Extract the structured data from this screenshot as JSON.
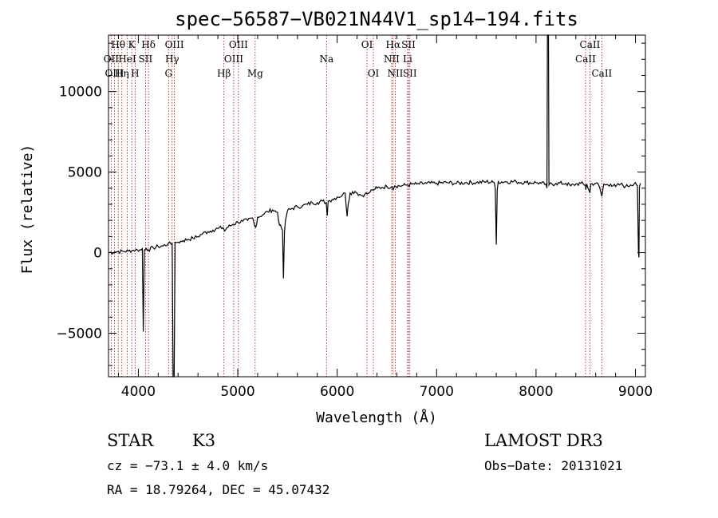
{
  "chart_data": {
    "type": "line",
    "title": "spec−56587−VB021N44V1_sp14−194.fits",
    "xlabel": "Wavelength (Å)",
    "ylabel": "Flux (relative)",
    "xlim": [
      3700,
      9100
    ],
    "ylim": [
      -7700,
      13500
    ],
    "x_ticks": [
      4000,
      5000,
      6000,
      7000,
      8000,
      9000
    ],
    "y_ticks": [
      -5000,
      0,
      5000,
      10000
    ],
    "y_tick_labels": [
      "−5000",
      "0",
      "5000",
      "10000"
    ],
    "grid": false,
    "series": [
      {
        "color": "#000000",
        "points": [
          [
            3700,
            0
          ],
          [
            3760,
            40
          ],
          [
            3800,
            60
          ],
          [
            3850,
            80
          ],
          [
            3900,
            100
          ],
          [
            3950,
            150
          ],
          [
            3990,
            170
          ],
          [
            4030,
            170
          ],
          [
            4040,
            250
          ],
          [
            4050,
            -4900
          ],
          [
            4060,
            150
          ],
          [
            4080,
            260
          ],
          [
            4100,
            180
          ],
          [
            4150,
            300
          ],
          [
            4200,
            380
          ],
          [
            4250,
            420
          ],
          [
            4300,
            560
          ],
          [
            4330,
            520
          ],
          [
            4340,
            560
          ],
          [
            4350,
            -7700
          ],
          [
            4360,
            -7700
          ],
          [
            4370,
            640
          ],
          [
            4400,
            650
          ],
          [
            4450,
            750
          ],
          [
            4500,
            820
          ],
          [
            4550,
            900
          ],
          [
            4600,
            1000
          ],
          [
            4650,
            1200
          ],
          [
            4700,
            1300
          ],
          [
            4750,
            1400
          ],
          [
            4800,
            1500
          ],
          [
            4850,
            1550
          ],
          [
            4870,
            1350
          ],
          [
            4890,
            1550
          ],
          [
            4950,
            1750
          ],
          [
            5000,
            1900
          ],
          [
            5050,
            1950
          ],
          [
            5100,
            2000
          ],
          [
            5150,
            2150
          ],
          [
            5170,
            1650
          ],
          [
            5190,
            1750
          ],
          [
            5200,
            2200
          ],
          [
            5250,
            2350
          ],
          [
            5300,
            2550
          ],
          [
            5350,
            2650
          ],
          [
            5400,
            2500
          ],
          [
            5420,
            1700
          ],
          [
            5440,
            1500
          ],
          [
            5450,
            1400
          ],
          [
            5460,
            -1600
          ],
          [
            5470,
            1300
          ],
          [
            5480,
            2000
          ],
          [
            5500,
            2600
          ],
          [
            5550,
            2750
          ],
          [
            5600,
            2850
          ],
          [
            5650,
            2900
          ],
          [
            5700,
            3000
          ],
          [
            5750,
            3100
          ],
          [
            5800,
            3100
          ],
          [
            5850,
            3200
          ],
          [
            5890,
            3100
          ],
          [
            5900,
            2300
          ],
          [
            5910,
            3200
          ],
          [
            5950,
            3300
          ],
          [
            6000,
            3450
          ],
          [
            6050,
            3550
          ],
          [
            6080,
            3700
          ],
          [
            6100,
            2250
          ],
          [
            6110,
            3000
          ],
          [
            6130,
            3700
          ],
          [
            6180,
            3800
          ],
          [
            6200,
            3700
          ],
          [
            6250,
            3550
          ],
          [
            6280,
            3650
          ],
          [
            6300,
            3650
          ],
          [
            6330,
            3750
          ],
          [
            6350,
            3900
          ],
          [
            6380,
            3950
          ],
          [
            6400,
            4000
          ],
          [
            6450,
            4050
          ],
          [
            6500,
            4100
          ],
          [
            6550,
            4100
          ],
          [
            6563,
            3900
          ],
          [
            6580,
            4150
          ],
          [
            6650,
            4150
          ],
          [
            6700,
            4200
          ],
          [
            6750,
            4250
          ],
          [
            6800,
            4250
          ],
          [
            6900,
            4300
          ],
          [
            7000,
            4300
          ],
          [
            7100,
            4350
          ],
          [
            7200,
            4300
          ],
          [
            7300,
            4350
          ],
          [
            7400,
            4350
          ],
          [
            7500,
            4400
          ],
          [
            7580,
            4350
          ],
          [
            7590,
            4000
          ],
          [
            7600,
            500
          ],
          [
            7610,
            3900
          ],
          [
            7620,
            4400
          ],
          [
            7700,
            4400
          ],
          [
            7800,
            4400
          ],
          [
            7900,
            4350
          ],
          [
            8000,
            4350
          ],
          [
            8050,
            4300
          ],
          [
            8100,
            4250
          ],
          [
            8110,
            4000
          ],
          [
            8115,
            13500
          ],
          [
            8125,
            13500
          ],
          [
            8130,
            4200
          ],
          [
            8200,
            4300
          ],
          [
            8300,
            4300
          ],
          [
            8350,
            4150
          ],
          [
            8400,
            4250
          ],
          [
            8450,
            4300
          ],
          [
            8498,
            4200
          ],
          [
            8500,
            3900
          ],
          [
            8510,
            4250
          ],
          [
            8542,
            3700
          ],
          [
            8550,
            4250
          ],
          [
            8600,
            4300
          ],
          [
            8630,
            4200
          ],
          [
            8662,
            3500
          ],
          [
            8680,
            4250
          ],
          [
            8700,
            4200
          ],
          [
            8750,
            4250
          ],
          [
            8800,
            4100
          ],
          [
            8850,
            4250
          ],
          [
            8900,
            4100
          ],
          [
            8950,
            4200
          ],
          [
            9000,
            4350
          ],
          [
            9020,
            4150
          ],
          [
            9030,
            0
          ],
          [
            9035,
            -300
          ],
          [
            9040,
            4100
          ],
          [
            9050,
            4300
          ]
        ]
      }
    ],
    "spectral_lines": [
      {
        "label": "Hθ",
        "x": 3798,
        "row": 0
      },
      {
        "label": "OII",
        "x": 3727,
        "row": 1
      },
      {
        "label": "OIII",
        "x": 3760,
        "row": 2
      },
      {
        "label": "Hη",
        "x": 3835,
        "row": 2
      },
      {
        "label": "HeI",
        "x": 3889,
        "row": 1
      },
      {
        "label": "K",
        "x": 3934,
        "row": 0
      },
      {
        "label": "H",
        "x": 3968,
        "row": 2
      },
      {
        "label": "SII",
        "x": 4072,
        "row": 1
      },
      {
        "label": "Hδ",
        "x": 4102,
        "row": 0
      },
      {
        "label": "OIII",
        "x": 4363,
        "row": 0
      },
      {
        "label": "Hγ",
        "x": 4340,
        "row": 1
      },
      {
        "label": "G",
        "x": 4304,
        "row": 2
      },
      {
        "label": "OIII",
        "x": 5007,
        "row": 0
      },
      {
        "label": "OIII",
        "x": 4959,
        "row": 1
      },
      {
        "label": "Hβ",
        "x": 4861,
        "row": 2
      },
      {
        "label": "Mg",
        "x": 5175,
        "row": 2
      },
      {
        "label": "Na",
        "x": 5893,
        "row": 1
      },
      {
        "label": "OI",
        "x": 6300,
        "row": 0
      },
      {
        "label": "OI",
        "x": 6364,
        "row": 2
      },
      {
        "label": "Hα",
        "x": 6563,
        "row": 0
      },
      {
        "label": "NII",
        "x": 6548,
        "row": 1
      },
      {
        "label": "NII",
        "x": 6584,
        "row": 2
      },
      {
        "label": "SII",
        "x": 6717,
        "row": 0
      },
      {
        "label": "Li",
        "x": 6708,
        "row": 1
      },
      {
        "label": "SII",
        "x": 6731,
        "row": 2
      },
      {
        "label": "CaII",
        "x": 8542,
        "row": 0
      },
      {
        "label": "CaII",
        "x": 8498,
        "row": 1
      },
      {
        "label": "CaII",
        "x": 8662,
        "row": 2
      }
    ]
  },
  "info": {
    "class": "STAR",
    "subclass": "K3",
    "survey": "LAMOST DR3",
    "cz": "cz = −73.1 ± 4.0 km/s",
    "obs_date": "Obs−Date: 20131021",
    "coords": "RA =  18.79264, DEC =  45.07432"
  },
  "colors": {
    "spectrum": "#000000",
    "line_markers": "#a01010",
    "axes": "#000000"
  }
}
